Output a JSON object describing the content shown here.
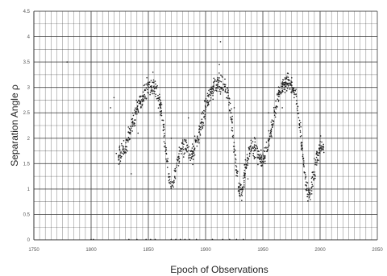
{
  "chart_data": {
    "type": "scatter",
    "title": "",
    "xlabel": "Epoch of Observations",
    "ylabel": "Separation Angle  ρ",
    "xlim": [
      1750,
      2050
    ],
    "ylim": [
      0,
      4.5
    ],
    "x_ticks": [
      "1750",
      "1800",
      "1850",
      "1900",
      "1950",
      "2000",
      "2050"
    ],
    "y_ticks": [
      "0",
      "0.5",
      "1",
      "1.5",
      "2",
      "2.5",
      "3",
      "3.5",
      "4",
      "4.5"
    ],
    "grid": true,
    "legend": "none",
    "colors": {
      "points": "#222222",
      "grid": "#333333",
      "background": "#ffffff"
    },
    "trend_knots": [
      [
        1824,
        1.65
      ],
      [
        1830,
        1.8
      ],
      [
        1835,
        2.2
      ],
      [
        1840,
        2.6
      ],
      [
        1845,
        2.85
      ],
      [
        1850,
        3.0
      ],
      [
        1855,
        3.02
      ],
      [
        1858,
        2.9
      ],
      [
        1861,
        2.6
      ],
      [
        1864,
        2.0
      ],
      [
        1867,
        1.4
      ],
      [
        1870,
        1.0
      ],
      [
        1873,
        1.2
      ],
      [
        1876,
        1.6
      ],
      [
        1880,
        1.85
      ],
      [
        1884,
        1.75
      ],
      [
        1888,
        1.65
      ],
      [
        1892,
        1.9
      ],
      [
        1896,
        2.25
      ],
      [
        1900,
        2.6
      ],
      [
        1904,
        2.85
      ],
      [
        1908,
        3.05
      ],
      [
        1912,
        3.1
      ],
      [
        1916,
        3.05
      ],
      [
        1920,
        2.8
      ],
      [
        1923,
        2.3
      ],
      [
        1926,
        1.6
      ],
      [
        1929,
        1.0
      ],
      [
        1932,
        0.95
      ],
      [
        1935,
        1.4
      ],
      [
        1938,
        1.75
      ],
      [
        1941,
        1.85
      ],
      [
        1945,
        1.75
      ],
      [
        1948,
        1.55
      ],
      [
        1952,
        1.65
      ],
      [
        1956,
        2.0
      ],
      [
        1960,
        2.5
      ],
      [
        1964,
        2.85
      ],
      [
        1968,
        3.05
      ],
      [
        1972,
        3.1
      ],
      [
        1976,
        3.0
      ],
      [
        1979,
        2.8
      ],
      [
        1982,
        2.3
      ],
      [
        1985,
        1.6
      ],
      [
        1988,
        1.05
      ],
      [
        1991,
        0.9
      ],
      [
        1994,
        1.2
      ],
      [
        1997,
        1.6
      ],
      [
        2000,
        1.85
      ],
      [
        2004,
        1.8
      ]
    ],
    "outliers": [
      [
        1779,
        3.5
      ],
      [
        1817,
        2.6
      ],
      [
        1820,
        2.8
      ],
      [
        1822,
        1.7
      ],
      [
        1835,
        1.3
      ],
      [
        1841,
        2.1
      ],
      [
        1854,
        3.3
      ],
      [
        1870,
        2.0
      ],
      [
        1878,
        1.8
      ],
      [
        1885,
        2.4
      ],
      [
        1912,
        3.45
      ],
      [
        1913,
        3.9
      ],
      [
        1925,
        2.6
      ],
      [
        1937,
        1.2
      ],
      [
        1955,
        2.5
      ],
      [
        1967,
        2.6
      ],
      [
        1995,
        1.6
      ]
    ],
    "baseline_points": [
      [
        1800,
        0.0
      ],
      [
        1802,
        0.0
      ],
      [
        1833,
        0.0
      ],
      [
        1840,
        0.0
      ],
      [
        1848,
        0.0
      ],
      [
        1852,
        0.0
      ],
      [
        1856,
        0.0
      ],
      [
        1870,
        0.0
      ],
      [
        1874,
        0.0
      ],
      [
        1878,
        0.0
      ],
      [
        1882,
        0.0
      ],
      [
        1886,
        0.0
      ],
      [
        1892,
        0.0
      ],
      [
        1906,
        0.0
      ],
      [
        1915,
        0.0
      ],
      [
        1921,
        0.0
      ],
      [
        1927,
        0.0
      ],
      [
        1933,
        0.0
      ]
    ]
  }
}
